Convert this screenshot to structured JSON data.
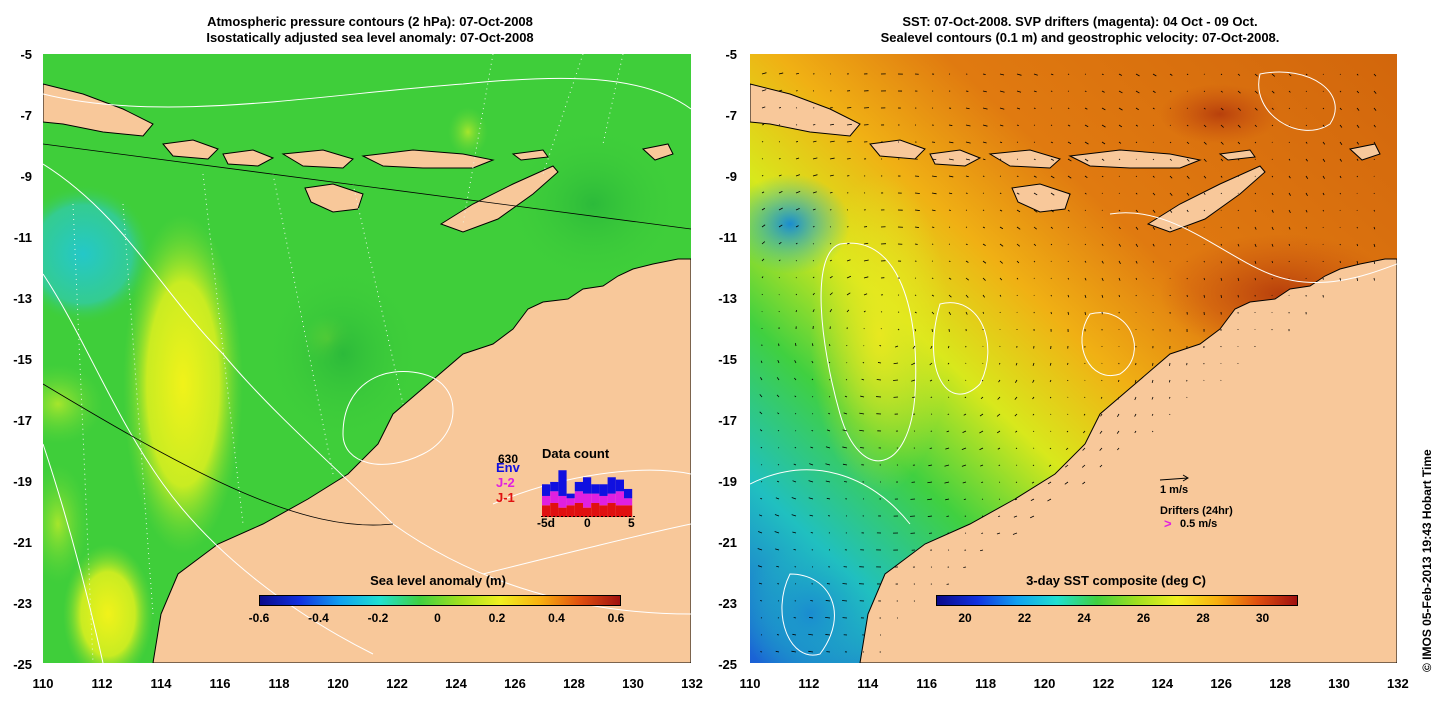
{
  "left_panel": {
    "title_line1": "Atmospheric pressure contours (2 hPa): 07-Oct-2008",
    "title_line2": "Isostatically adjusted sea level anomaly: 07-Oct-2008",
    "x_ticks": [
      "110",
      "112",
      "114",
      "116",
      "118",
      "120",
      "122",
      "124",
      "126",
      "128",
      "130",
      "132"
    ],
    "y_ticks": [
      "-5",
      "-7",
      "-9",
      "-11",
      "-13",
      "-15",
      "-17",
      "-19",
      "-21",
      "-23",
      "-25"
    ],
    "colorbar": {
      "title": "Sea level anomaly (m)",
      "labels": [
        "-0.6",
        "-0.4",
        "-0.2",
        "0",
        "0.2",
        "0.4",
        "0.6"
      ]
    },
    "data_count": {
      "title": "Data count",
      "max_label": "630",
      "series": [
        {
          "name": "Env",
          "color": "#1010e0"
        },
        {
          "name": "J-2",
          "color": "#e020e0"
        },
        {
          "name": "J-1",
          "color": "#e01010"
        }
      ],
      "x_labels": [
        "-5d",
        "0",
        "5"
      ],
      "bars": [
        {
          "j1": 0.25,
          "j2": 0.2,
          "env": 0.25
        },
        {
          "j1": 0.3,
          "j2": 0.25,
          "env": 0.2
        },
        {
          "j1": 0.2,
          "j2": 0.25,
          "env": 0.55
        },
        {
          "j1": 0.25,
          "j2": 0.15,
          "env": 0.1
        },
        {
          "j1": 0.3,
          "j2": 0.25,
          "env": 0.2
        },
        {
          "j1": 0.2,
          "j2": 0.3,
          "env": 0.35
        },
        {
          "j1": 0.3,
          "j2": 0.2,
          "env": 0.2
        },
        {
          "j1": 0.25,
          "j2": 0.2,
          "env": 0.25
        },
        {
          "j1": 0.3,
          "j2": 0.2,
          "env": 0.35
        },
        {
          "j1": 0.25,
          "j2": 0.3,
          "env": 0.25
        },
        {
          "j1": 0.25,
          "j2": 0.15,
          "env": 0.2
        }
      ]
    }
  },
  "right_panel": {
    "title_line1": "SST: 07-Oct-2008. SVP drifters (magenta): 04 Oct - 09 Oct.",
    "title_line2": "Sealevel contours (0.1 m) and geostrophic velocity: 07-Oct-2008.",
    "x_ticks": [
      "110",
      "112",
      "114",
      "116",
      "118",
      "120",
      "122",
      "124",
      "126",
      "128",
      "130",
      "132"
    ],
    "y_ticks": [
      "-5",
      "-7",
      "-9",
      "-11",
      "-13",
      "-15",
      "-17",
      "-19",
      "-21",
      "-23",
      "-25"
    ],
    "colorbar": {
      "title": "3-day SST composite (deg C)",
      "labels": [
        "20",
        "22",
        "24",
        "26",
        "28",
        "30"
      ]
    },
    "velocity_scale_label": "1 m/s",
    "drifters_label": "Drifters (24hr)",
    "drifter_speed_label": "0.5 m/s",
    "drifter_marker": ">"
  },
  "credit": "© IMOS 05-Feb-2013 19:43 Hobart Time",
  "colors": {
    "land": "#f8c89a",
    "ocean_green": "#3fce3a",
    "warm_orange": "#d8670c",
    "cool_blue": "#1a5fd6"
  }
}
